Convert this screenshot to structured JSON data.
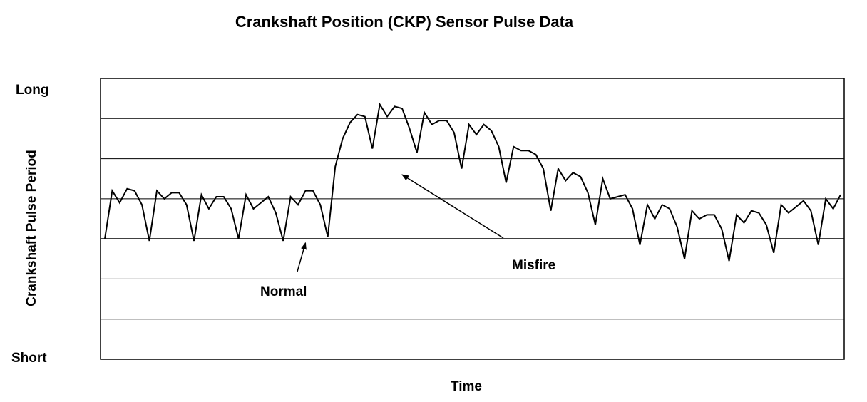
{
  "chart_data": {
    "type": "line",
    "title": "Crankshaft Position (CKP) Sensor Pulse Data",
    "xlabel": "Time",
    "ylabel": "Crankshaft Pulse Period",
    "y_top_label": "Long",
    "y_bottom_label": "Short",
    "ylim": [
      0,
      7
    ],
    "grid": true,
    "annotations": [
      {
        "text": "Normal",
        "points_to": {
          "x": 27,
          "y": 2.9
        }
      },
      {
        "text": "Misfire",
        "points_to": {
          "x": 40,
          "y": 4.6
        }
      }
    ],
    "series": [
      {
        "values": [
          3.0,
          4.2,
          3.9,
          4.25,
          4.2,
          3.85,
          2.95,
          4.2,
          4.0,
          4.15,
          4.15,
          3.85,
          2.95,
          4.1,
          3.75,
          4.05,
          4.05,
          3.75,
          3.0,
          4.1,
          3.75,
          3.9,
          4.05,
          3.65,
          2.95,
          4.05,
          3.85,
          4.2,
          4.2,
          3.85,
          3.05,
          4.8,
          5.5,
          5.9,
          6.1,
          6.05,
          5.25,
          6.35,
          6.05,
          6.3,
          6.25,
          5.75,
          5.15,
          6.15,
          5.85,
          5.95,
          5.95,
          5.65,
          4.75,
          5.85,
          5.6,
          5.85,
          5.7,
          5.3,
          4.4,
          5.3,
          5.2,
          5.2,
          5.1,
          4.75,
          3.7,
          4.75,
          4.45,
          4.65,
          4.55,
          4.15,
          3.35,
          4.5,
          4.0,
          4.05,
          4.1,
          3.75,
          2.85,
          3.85,
          3.5,
          3.85,
          3.75,
          3.3,
          2.5,
          3.7,
          3.5,
          3.6,
          3.6,
          3.25,
          2.45,
          3.6,
          3.4,
          3.7,
          3.65,
          3.35,
          2.65,
          3.85,
          3.65,
          3.8,
          3.95,
          3.7,
          2.85,
          4.0,
          3.75,
          4.1
        ]
      }
    ]
  }
}
